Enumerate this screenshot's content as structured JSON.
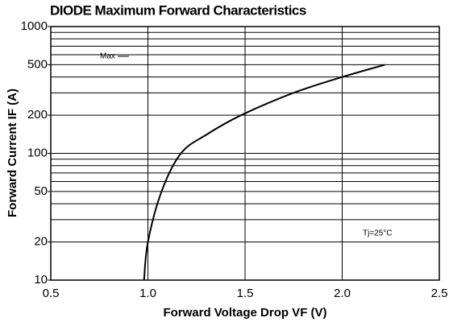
{
  "chart_data": {
    "type": "line",
    "title": "DIODE Maximum Forward Characteristics",
    "x_label": "Forward Voltage Drop VF (V)",
    "y_label": "Forward Current IF (A)",
    "annotations": [
      "Max",
      "Tj=25°C"
    ],
    "x": [
      0.98,
      1.0,
      1.07,
      1.17,
      1.3,
      1.48,
      1.75,
      2.0,
      2.22
    ],
    "values": [
      10,
      20,
      50,
      100,
      140,
      200,
      300,
      400,
      500
    ],
    "color": "#000000",
    "xlim": [
      0.5,
      2.5
    ],
    "xticks": [
      0.5,
      {
        "value": 1,
        "label": "1.0"
      },
      1.5,
      {
        "value": 2,
        "label": "2.0"
      },
      2.5
    ],
    "ylim": [
      10,
      1000
    ],
    "yticks": [
      10,
      20,
      50,
      100,
      200,
      500,
      1000
    ],
    "ygrid": [
      20,
      30,
      40,
      50,
      60,
      70,
      80,
      90,
      100,
      200,
      300,
      400,
      500,
      600,
      700,
      800,
      900
    ],
    "ylog": true,
    "grid": true
  }
}
